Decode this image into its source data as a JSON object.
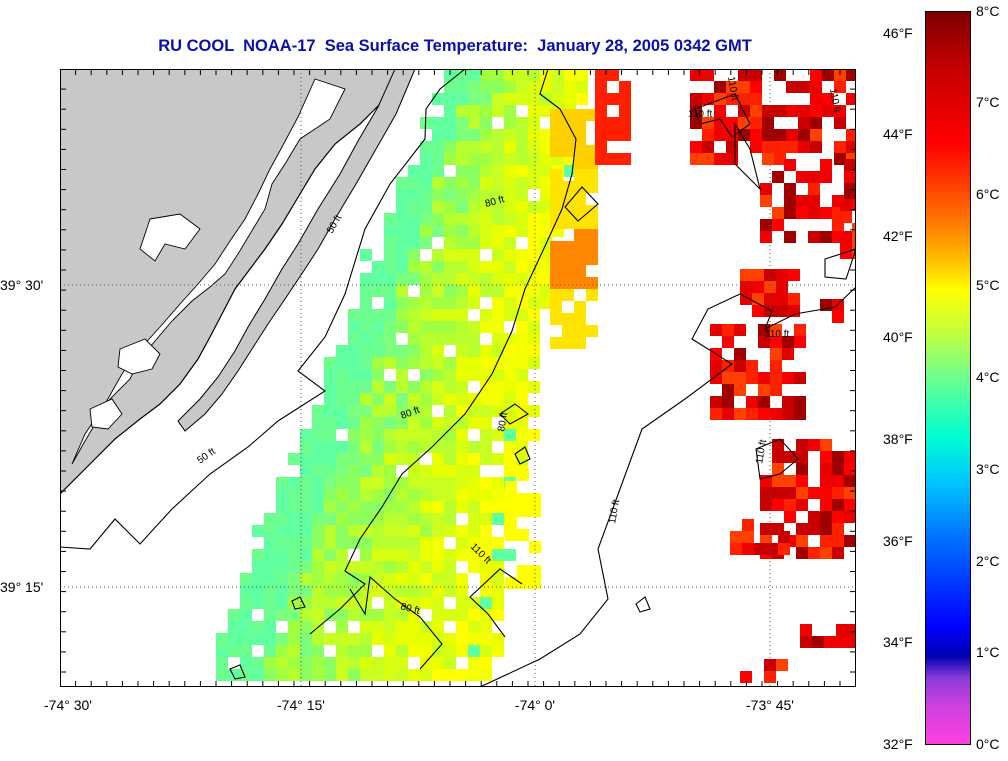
{
  "title": "RU COOL  NOAA-17  Sea Surface Temperature:  January 28, 2005 0342 GMT",
  "x_tick_labels": [
    "-74° 30'",
    "-74° 15'",
    "-74° 0'",
    "-73° 45'"
  ],
  "y_tick_labels": [
    "39° 30'",
    "39° 15'"
  ],
  "contour_labels": [
    "50 ft",
    "50 ft",
    "80 ft",
    "80 ft",
    "80 ft",
    "80 ft",
    "110 ft",
    "110 ft",
    "110 ft",
    "110 ft",
    "110 ft",
    "110 ft"
  ],
  "colorbar": {
    "fahrenheit_labels": [
      "46°F",
      "44°F",
      "42°F",
      "40°F",
      "38°F",
      "36°F",
      "34°F",
      "32°F"
    ],
    "celsius_labels": [
      "8°C",
      "7°C",
      "6°C",
      "5°C",
      "4°C",
      "3°C",
      "2°C",
      "1°C",
      "0°C"
    ],
    "range_c": [
      0,
      8
    ]
  },
  "colors": {
    "land": "#c8c8c8",
    "title": "#0a10a8",
    "water_nodata": "#ffffff"
  }
}
